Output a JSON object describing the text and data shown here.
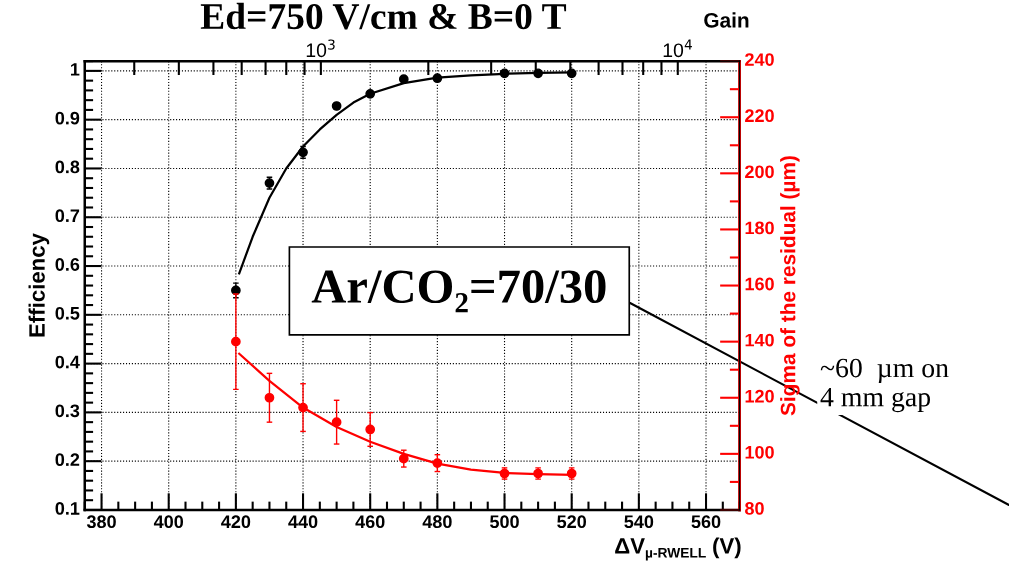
{
  "chart_data": {
    "type": "scatter",
    "title": "Ed=750 V/cm & B=0 T",
    "xlabel": "ΔV$_{µ-RWELL}$ (V)",
    "ylabel": "Efficiency",
    "y2label": "Sigma of the residual (µm)",
    "x2label": "Gain",
    "x": [
      420,
      430,
      440,
      450,
      460,
      470,
      480,
      500,
      510,
      520
    ],
    "series": [
      {
        "color": "#000000",
        "values": [
          0.55,
          0.77,
          0.833,
          0.928,
          0.953,
          0.983,
          0.985,
          0.995,
          0.995,
          0.995
        ],
        "errors": [
          0.015,
          0.012,
          0.012,
          0.006,
          0.006,
          0.005,
          0.005,
          0.004,
          0.004,
          0.004
        ]
      },
      {
        "type": "line",
        "color": "#000000",
        "marker": "none",
        "x": [
          421,
          425,
          430,
          435,
          440,
          445,
          450,
          455,
          460,
          470,
          480,
          490,
          500,
          510,
          520
        ],
        "values": [
          0.585,
          0.66,
          0.74,
          0.8,
          0.845,
          0.88,
          0.91,
          0.935,
          0.953,
          0.975,
          0.986,
          0.991,
          0.994,
          0.996,
          0.997
        ]
      },
      {
        "color": "#ff0000",
        "axis": "y2",
        "values": [
          140,
          120,
          116.5,
          111.3,
          108.7,
          98.3,
          96.7,
          93,
          93,
          93
        ],
        "errors": [
          17,
          8.7,
          8.5,
          7.8,
          6,
          3,
          3,
          2,
          2,
          2
        ]
      },
      {
        "type": "line",
        "color": "#ff0000",
        "axis": "y2",
        "marker": "none",
        "x": [
          421,
          430,
          440,
          450,
          460,
          470,
          480,
          490,
          500,
          510,
          520
        ],
        "values": [
          135.7,
          126,
          116.5,
          109.6,
          104.3,
          100,
          96.5,
          94.4,
          93.2,
          92.8,
          92.5
        ]
      }
    ],
    "marker": "circle",
    "line_style": "solid",
    "grid": true,
    "xlim": [
      375,
      570
    ],
    "xticks": [
      380,
      400,
      420,
      440,
      460,
      480,
      500,
      520,
      540,
      560
    ],
    "ylim": [
      0.1,
      1.02
    ],
    "yticks": [
      0.1,
      0.2,
      0.3,
      0.4,
      0.5,
      0.6,
      0.7,
      0.8,
      0.9,
      1
    ],
    "y2lim": [
      80,
      240
    ],
    "y2ticks": [
      80,
      100,
      120,
      140,
      160,
      180,
      200,
      220,
      240
    ],
    "x2lim": [
      218,
      14900
    ],
    "x2ticks": [
      {
        "value": 300,
        "label": null
      },
      {
        "value": 400,
        "label": null
      },
      {
        "value": 500,
        "label": null
      },
      {
        "value": 600,
        "label": null
      },
      {
        "value": 700,
        "label": null
      },
      {
        "value": 800,
        "label": null
      },
      {
        "value": 900,
        "label": null
      },
      {
        "value": 1000,
        "label": "10$^{3}$"
      },
      {
        "value": 2000,
        "label": null
      },
      {
        "value": 3000,
        "label": null
      },
      {
        "value": 4000,
        "label": null
      },
      {
        "value": 5000,
        "label": null
      },
      {
        "value": 6000,
        "label": null
      },
      {
        "value": 7000,
        "label": null
      },
      {
        "value": 8000,
        "label": null
      },
      {
        "value": 9000,
        "label": null
      },
      {
        "value": 10000,
        "label": "10$^{4}$"
      }
    ],
    "log": "x2",
    "annotations": [
      "Ar/CO₂=70/30",
      "~60  µm on\n4 mm gap"
    ]
  }
}
